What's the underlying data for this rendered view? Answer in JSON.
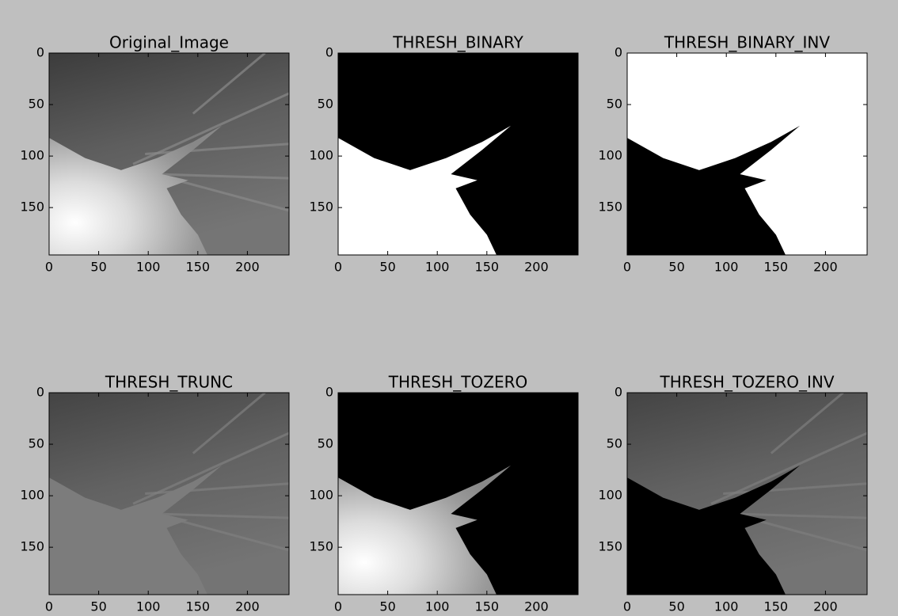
{
  "chart_data": [
    {
      "type": "image",
      "title": "Original_Image",
      "xlim": [
        0,
        242
      ],
      "ylim": [
        196,
        0
      ],
      "xticks": [
        0,
        50,
        100,
        150,
        200
      ],
      "yticks": [
        0,
        50,
        100,
        150
      ]
    },
    {
      "type": "image",
      "title": "THRESH_BINARY",
      "xlim": [
        0,
        242
      ],
      "ylim": [
        196,
        0
      ],
      "xticks": [
        0,
        50,
        100,
        150,
        200
      ],
      "yticks": [
        0,
        50,
        100,
        150
      ]
    },
    {
      "type": "image",
      "title": "THRESH_BINARY_INV",
      "xlim": [
        0,
        242
      ],
      "ylim": [
        196,
        0
      ],
      "xticks": [
        0,
        50,
        100,
        150,
        200
      ],
      "yticks": [
        0,
        50,
        100,
        150
      ]
    },
    {
      "type": "image",
      "title": "THRESH_TRUNC",
      "xlim": [
        0,
        242
      ],
      "ylim": [
        196,
        0
      ],
      "xticks": [
        0,
        50,
        100,
        150,
        200
      ],
      "yticks": [
        0,
        50,
        100,
        150
      ]
    },
    {
      "type": "image",
      "title": "THRESH_TOZERO",
      "xlim": [
        0,
        242
      ],
      "ylim": [
        196,
        0
      ],
      "xticks": [
        0,
        50,
        100,
        150,
        200
      ],
      "yticks": [
        0,
        50,
        100,
        150
      ]
    },
    {
      "type": "image",
      "title": "THRESH_TOZERO_INV",
      "xlim": [
        0,
        242
      ],
      "ylim": [
        196,
        0
      ],
      "xticks": [
        0,
        50,
        100,
        150,
        200
      ],
      "yticks": [
        0,
        50,
        100,
        150
      ]
    }
  ]
}
